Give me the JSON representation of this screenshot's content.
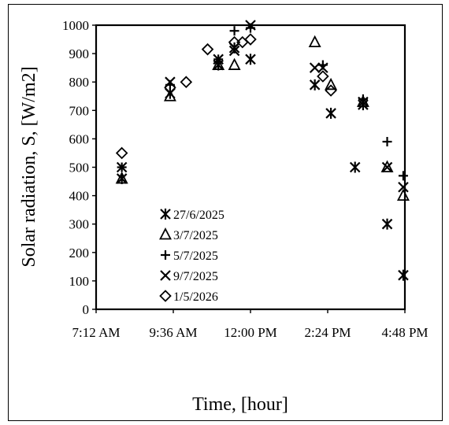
{
  "chart_data": {
    "type": "scatter",
    "title": "",
    "xlabel": "Time, [hour]",
    "ylabel": "Solar radiation, S, [W/m2]",
    "xlim": [
      "7:12 AM",
      "4:48 PM"
    ],
    "ylim": [
      0,
      1000
    ],
    "x_ticks": [
      "7:12 AM",
      "9:36 AM",
      "12:00 PM",
      "2:24 PM",
      "4:48 PM"
    ],
    "y_ticks": [
      0,
      100,
      200,
      300,
      400,
      500,
      600,
      700,
      800,
      900,
      1000
    ],
    "grid": false,
    "legend_position": "inside-left",
    "series": [
      {
        "name": "27/6/2025",
        "marker": "asterisk",
        "points": [
          {
            "x": "8:00 AM",
            "y": 460
          },
          {
            "x": "9:30 AM",
            "y": 760
          },
          {
            "x": "11:00 AM",
            "y": 860
          },
          {
            "x": "11:30 AM",
            "y": 920
          },
          {
            "x": "12:00 PM",
            "y": 880
          },
          {
            "x": "2:00 PM",
            "y": 790
          },
          {
            "x": "2:30 PM",
            "y": 690
          },
          {
            "x": "3:15 PM",
            "y": 500
          },
          {
            "x": "3:30 PM",
            "y": 720
          },
          {
            "x": "4:15 PM",
            "y": 300
          },
          {
            "x": "4:45 PM",
            "y": 120
          }
        ]
      },
      {
        "name": "3/7/2025",
        "marker": "triangle",
        "points": [
          {
            "x": "8:00 AM",
            "y": 460
          },
          {
            "x": "9:30 AM",
            "y": 750
          },
          {
            "x": "11:00 AM",
            "y": 860
          },
          {
            "x": "11:30 AM",
            "y": 860
          },
          {
            "x": "2:00 PM",
            "y": 940
          },
          {
            "x": "2:30 PM",
            "y": 790
          },
          {
            "x": "3:30 PM",
            "y": 730
          },
          {
            "x": "4:15 PM",
            "y": 500
          },
          {
            "x": "4:45 PM",
            "y": 400
          }
        ]
      },
      {
        "name": "5/7/2025",
        "marker": "plus",
        "points": [
          {
            "x": "8:00 AM",
            "y": 500
          },
          {
            "x": "9:30 AM",
            "y": 790
          },
          {
            "x": "11:00 AM",
            "y": 880
          },
          {
            "x": "11:30 AM",
            "y": 980
          },
          {
            "x": "12:00 PM",
            "y": 990
          },
          {
            "x": "2:15 PM",
            "y": 860
          },
          {
            "x": "3:30 PM",
            "y": 740
          },
          {
            "x": "4:15 PM",
            "y": 590
          },
          {
            "x": "4:45 PM",
            "y": 470
          }
        ]
      },
      {
        "name": "9/7/2025",
        "marker": "x",
        "points": [
          {
            "x": "8:00 AM",
            "y": 500
          },
          {
            "x": "9:30 AM",
            "y": 800
          },
          {
            "x": "11:00 AM",
            "y": 880
          },
          {
            "x": "11:30 AM",
            "y": 910
          },
          {
            "x": "12:00 PM",
            "y": 1000
          },
          {
            "x": "2:00 PM",
            "y": 850
          },
          {
            "x": "2:15 PM",
            "y": 850
          },
          {
            "x": "3:30 PM",
            "y": 730
          },
          {
            "x": "4:15 PM",
            "y": 500
          },
          {
            "x": "4:45 PM",
            "y": 430
          }
        ]
      },
      {
        "name": "1/5/2026",
        "marker": "diamond",
        "points": [
          {
            "x": "8:00 AM",
            "y": 550
          },
          {
            "x": "9:30 AM",
            "y": 780
          },
          {
            "x": "10:00 AM",
            "y": 800
          },
          {
            "x": "10:40 AM",
            "y": 915
          },
          {
            "x": "11:30 AM",
            "y": 940
          },
          {
            "x": "11:45 AM",
            "y": 940
          },
          {
            "x": "12:00 PM",
            "y": 950
          },
          {
            "x": "2:15 PM",
            "y": 820
          },
          {
            "x": "2:30 PM",
            "y": 770
          }
        ]
      }
    ]
  }
}
